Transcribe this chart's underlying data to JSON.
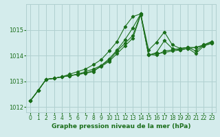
{
  "bg_color": "#d4ecec",
  "grid_color": "#b0d0d0",
  "line_color": "#1a6e1a",
  "xlabel": "Graphe pression niveau de la mer (hPa)",
  "xlim": [
    -0.5,
    23.5
  ],
  "ylim": [
    1011.8,
    1016.0
  ],
  "yticks": [
    1012,
    1013,
    1014,
    1015
  ],
  "xticks": [
    0,
    1,
    2,
    3,
    4,
    5,
    6,
    7,
    8,
    9,
    10,
    11,
    12,
    13,
    14,
    15,
    16,
    17,
    18,
    19,
    20,
    21,
    22,
    23
  ],
  "series": [
    [
      1012.25,
      1012.65,
      1013.08,
      1013.12,
      1013.18,
      1013.22,
      1013.27,
      1013.32,
      1013.38,
      1013.62,
      1013.88,
      1014.22,
      1014.62,
      1015.08,
      1015.62,
      1014.02,
      1014.08,
      1014.12,
      1014.18,
      1014.22,
      1014.28,
      1014.32,
      1014.42,
      1014.52
    ],
    [
      1012.25,
      1012.65,
      1013.08,
      1013.12,
      1013.18,
      1013.28,
      1013.38,
      1013.48,
      1013.65,
      1013.85,
      1014.18,
      1014.55,
      1015.12,
      1015.52,
      1015.62,
      1014.05,
      1014.02,
      1014.18,
      1014.22,
      1014.28,
      1014.32,
      1014.18,
      1014.42,
      1014.55
    ],
    [
      1012.25,
      1012.65,
      1013.08,
      1013.12,
      1013.18,
      1013.22,
      1013.28,
      1013.38,
      1013.48,
      1013.62,
      1013.82,
      1014.18,
      1014.48,
      1014.78,
      1015.62,
      1014.22,
      1014.52,
      1014.92,
      1014.42,
      1014.28,
      1014.32,
      1014.32,
      1014.38,
      1014.48
    ],
    [
      1012.25,
      1012.65,
      1013.08,
      1013.12,
      1013.18,
      1013.22,
      1013.28,
      1013.32,
      1013.42,
      1013.58,
      1013.78,
      1014.08,
      1014.38,
      1014.68,
      1015.58,
      1014.02,
      1014.12,
      1014.58,
      1014.28,
      1014.22,
      1014.28,
      1014.08,
      1014.38,
      1014.48
    ]
  ]
}
